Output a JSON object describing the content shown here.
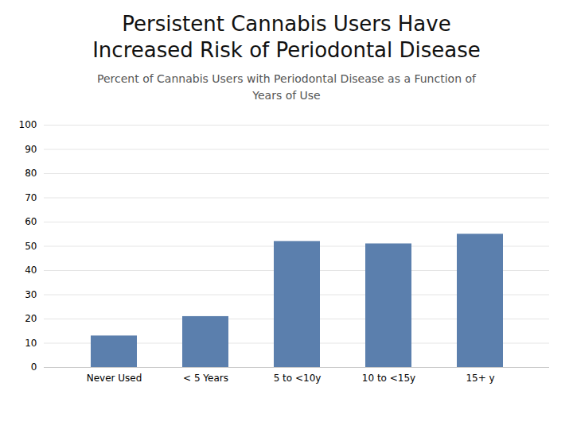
{
  "chart_data": {
    "type": "bar",
    "title": "Persistent Cannabis Users Have\nIncreased Risk of Periodontal Disease",
    "subtitle": "Percent of Cannabis Users with Periodontal Disease as a Function of\nYears of Use",
    "categories": [
      "Never Used",
      "< 5 Years",
      "5 to <10y",
      "10 to <15y",
      "15+ y"
    ],
    "values": [
      13,
      21,
      52,
      51,
      55
    ],
    "color": "#5b7fad",
    "ylim": [
      0,
      100
    ],
    "yticks": [
      0,
      10,
      20,
      30,
      40,
      50,
      60,
      70,
      80,
      90,
      100
    ],
    "grid": true
  }
}
